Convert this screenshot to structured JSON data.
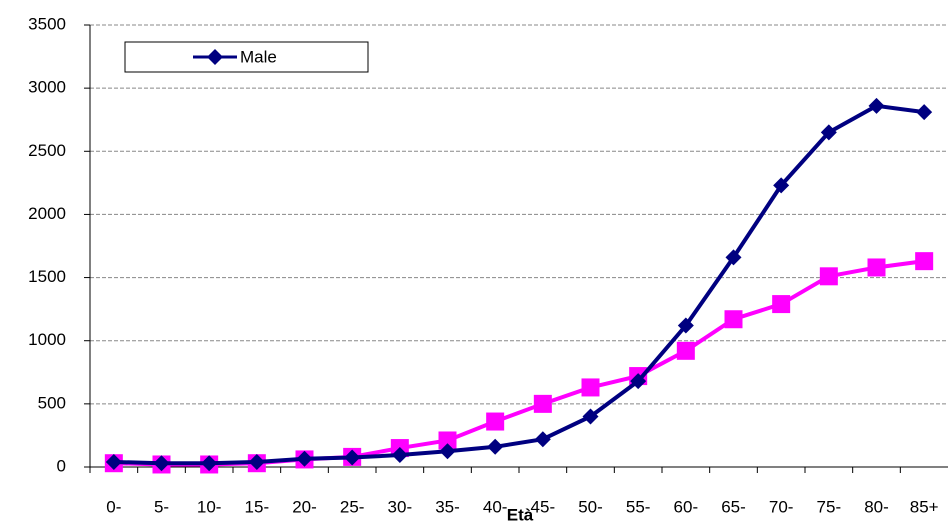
{
  "chart_data": {
    "type": "line",
    "x_label": "Età",
    "categories": [
      "0-",
      "5-",
      "10-",
      "15-",
      "20-",
      "25-",
      "30-",
      "35-",
      "40-",
      "45-",
      "50-",
      "55-",
      "60-",
      "65-",
      "70-",
      "75-",
      "80-",
      "85+"
    ],
    "series": [
      {
        "name": "Male",
        "color": "#000080",
        "marker": "diamond",
        "values": [
          40,
          30,
          30,
          40,
          65,
          75,
          95,
          125,
          160,
          220,
          400,
          680,
          1120,
          1660,
          2230,
          2650,
          2860,
          2810
        ]
      },
      {
        "color": "#ff00ff",
        "marker": "square",
        "values": [
          30,
          20,
          20,
          30,
          60,
          80,
          150,
          210,
          360,
          500,
          630,
          720,
          920,
          1170,
          1290,
          1510,
          1580,
          1630
        ]
      }
    ],
    "ylim": [
      0,
      3500
    ],
    "yticks": [
      0,
      500,
      1000,
      1500,
      2000,
      2500,
      3000,
      3500
    ],
    "grid": true,
    "legend": "top-left"
  }
}
